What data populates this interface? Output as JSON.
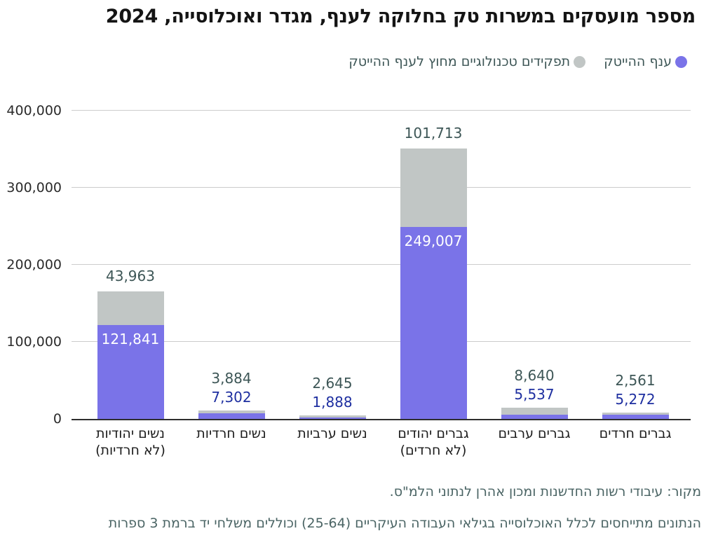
{
  "colors": {
    "purple": "#7a73e8",
    "gray": "#c1c6c5",
    "title": "#141414",
    "teal_label": "#3d5656",
    "navy_label": "#1e2fa0",
    "inside_label": "#ffffff",
    "axis": "#2b2b2b",
    "gridline": "#cccccc",
    "baseline": "#2e2e2e",
    "footnote": "#4a6464",
    "category_label": "#1c1c1c"
  },
  "chart_data": {
    "type": "bar",
    "stacked": true,
    "title": "מספר מועסקים במשרות טק בחלוקה לענף, מגדר ואוכלוסייה, 2024",
    "xlabel": "",
    "ylabel": "",
    "categories": [
      "נשים יהודיות\n(לא חרדיות)",
      "נשים חרדיות",
      "נשים ערביות",
      "גברים יהודים\n(לא חרדים)",
      "גברים ערבים",
      "גברים חרדים"
    ],
    "series": [
      {
        "name": "ענף ההייטק",
        "color": "#7a73e8",
        "values": [
          121841,
          7302,
          1888,
          249007,
          5537,
          5272
        ]
      },
      {
        "name": "תפקידים טכנולוגיים מחוץ לענף ההייטק",
        "color": "#c1c6c5",
        "values": [
          43963,
          3884,
          2645,
          101713,
          8640,
          2561
        ]
      }
    ],
    "ylim": [
      0,
      400000
    ],
    "yticks": [
      0,
      100000,
      200000,
      300000,
      400000
    ],
    "ytick_labels": [
      "0",
      "100,000",
      "200,000",
      "300,000",
      "400,000"
    ],
    "inside_label": [
      true,
      false,
      false,
      true,
      false,
      false
    ],
    "grid": true,
    "legend_position": "top-right"
  },
  "footer": {
    "source": "מקור: עיבודי רשות החדשנות ומכון אהרן לנתוני הלמ\"ס.",
    "note": "הנתונים מתייחסים לכלל האוכלוסייה בגילאי העבודה העיקריים (25-64) וכוללים משלחי יד ברמת 3 ספרות"
  }
}
